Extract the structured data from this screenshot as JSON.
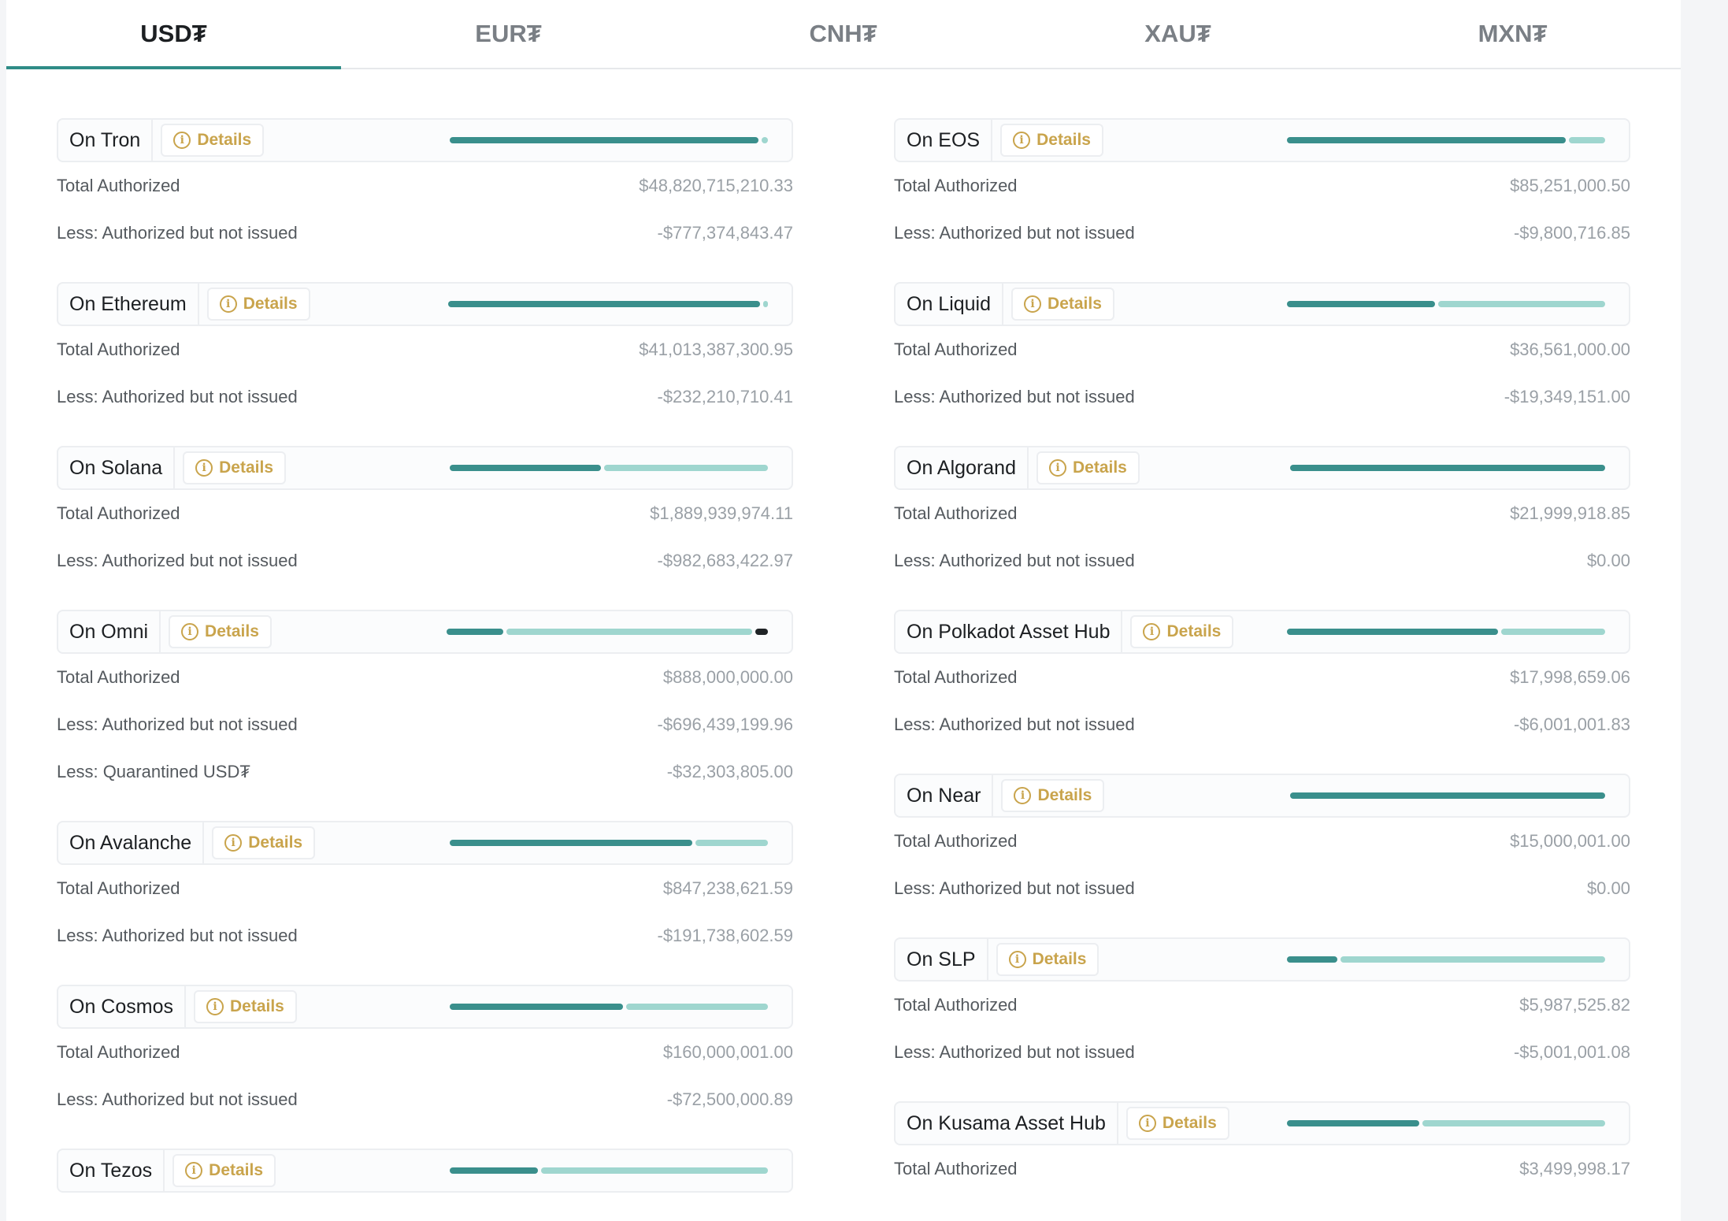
{
  "tabs": [
    {
      "label": "USD₮",
      "active": true
    },
    {
      "label": "EUR₮",
      "active": false
    },
    {
      "label": "CNH₮",
      "active": false
    },
    {
      "label": "XAU₮",
      "active": false
    },
    {
      "label": "MXN₮",
      "active": false
    }
  ],
  "details_label": "Details",
  "colors": {
    "issued": "#3a8f8c",
    "not_issued": "#9fd6cf",
    "quarantined": "#1f2326",
    "details": "#c9a44c",
    "tab_accent": "#2f8c87"
  },
  "left": [
    {
      "name": "On Tron",
      "bar_fractions": [
        0.98,
        0.02,
        0
      ],
      "rows": [
        {
          "label": "Total Authorized",
          "value": "$48,820,715,210.33"
        },
        {
          "label": "Less: Authorized but not issued",
          "value": "-$777,374,843.47"
        }
      ]
    },
    {
      "name": "On Ethereum",
      "bar_fractions": [
        0.99,
        0.01,
        0
      ],
      "rows": [
        {
          "label": "Total Authorized",
          "value": "$41,013,387,300.95"
        },
        {
          "label": "Less: Authorized but not issued",
          "value": "-$232,210,710.41"
        }
      ]
    },
    {
      "name": "On Solana",
      "bar_fractions": [
        0.48,
        0.52,
        0
      ],
      "rows": [
        {
          "label": "Total Authorized",
          "value": "$1,889,939,974.11"
        },
        {
          "label": "Less: Authorized but not issued",
          "value": "-$982,683,422.97"
        }
      ]
    },
    {
      "name": "On Omni",
      "bar_fractions": [
        0.18,
        0.78,
        0.04
      ],
      "rows": [
        {
          "label": "Total Authorized",
          "value": "$888,000,000.00"
        },
        {
          "label": "Less: Authorized but not issued",
          "value": "-$696,439,199.96"
        },
        {
          "label": "Less: Quarantined USD₮",
          "value": "-$32,303,805.00"
        }
      ]
    },
    {
      "name": "On Avalanche",
      "bar_fractions": [
        0.77,
        0.23,
        0
      ],
      "rows": [
        {
          "label": "Total Authorized",
          "value": "$847,238,621.59"
        },
        {
          "label": "Less: Authorized but not issued",
          "value": "-$191,738,602.59"
        }
      ]
    },
    {
      "name": "On Cosmos",
      "bar_fractions": [
        0.55,
        0.45,
        0
      ],
      "rows": [
        {
          "label": "Total Authorized",
          "value": "$160,000,001.00"
        },
        {
          "label": "Less: Authorized but not issued",
          "value": "-$72,500,000.89"
        }
      ]
    },
    {
      "name": "On Tezos",
      "bar_fractions": [
        0.28,
        0.72,
        0
      ],
      "rows": []
    }
  ],
  "right": [
    {
      "name": "On EOS",
      "bar_fractions": [
        0.885,
        0.115,
        0
      ],
      "rows": [
        {
          "label": "Total Authorized",
          "value": "$85,251,000.50"
        },
        {
          "label": "Less: Authorized but not issued",
          "value": "-$9,800,716.85"
        }
      ]
    },
    {
      "name": "On Liquid",
      "bar_fractions": [
        0.47,
        0.53,
        0
      ],
      "rows": [
        {
          "label": "Total Authorized",
          "value": "$36,561,000.00"
        },
        {
          "label": "Less: Authorized but not issued",
          "value": "-$19,349,151.00"
        }
      ]
    },
    {
      "name": "On Algorand",
      "bar_fractions": [
        1.0,
        0,
        0
      ],
      "rows": [
        {
          "label": "Total Authorized",
          "value": "$21,999,918.85"
        },
        {
          "label": "Less: Authorized but not issued",
          "value": "$0.00"
        }
      ]
    },
    {
      "name": "On Polkadot Asset Hub",
      "bar_fractions": [
        0.67,
        0.33,
        0
      ],
      "rows": [
        {
          "label": "Total Authorized",
          "value": "$17,998,659.06"
        },
        {
          "label": "Less: Authorized but not issued",
          "value": "-$6,001,001.83"
        }
      ]
    },
    {
      "name": "On Near",
      "bar_fractions": [
        1.0,
        0,
        0
      ],
      "rows": [
        {
          "label": "Total Authorized",
          "value": "$15,000,001.00"
        },
        {
          "label": "Less: Authorized but not issued",
          "value": "$0.00"
        }
      ]
    },
    {
      "name": "On SLP",
      "bar_fractions": [
        0.16,
        0.84,
        0
      ],
      "rows": [
        {
          "label": "Total Authorized",
          "value": "$5,987,525.82"
        },
        {
          "label": "Less: Authorized but not issued",
          "value": "-$5,001,001.08"
        }
      ]
    },
    {
      "name": "On Kusama Asset Hub",
      "bar_fractions": [
        0.42,
        0.58,
        0
      ],
      "rows": [
        {
          "label": "Total Authorized",
          "value": "$3,499,998.17"
        }
      ]
    }
  ]
}
